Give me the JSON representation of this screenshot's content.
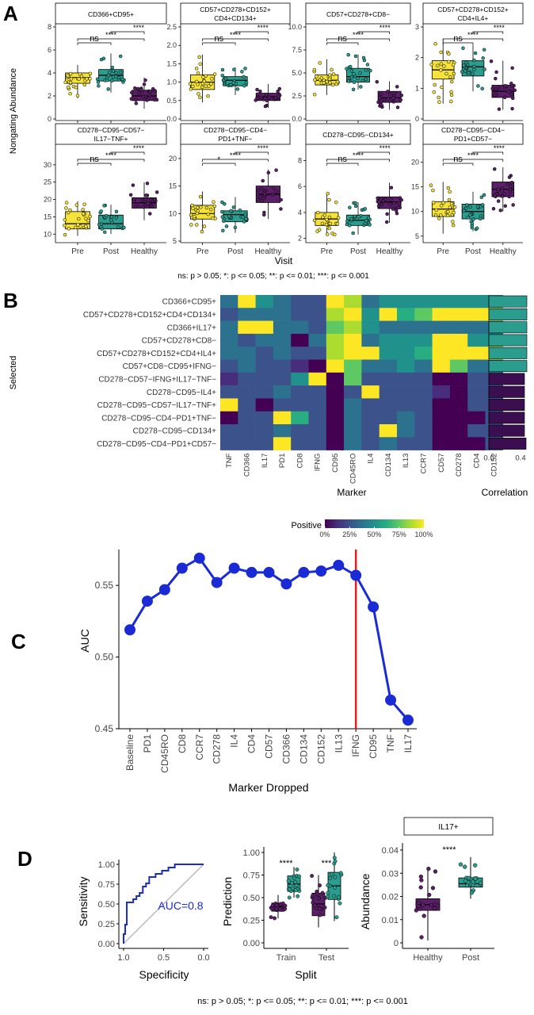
{
  "panels": {
    "A": {
      "letter": "A",
      "ylabel": "Nongating Abundance",
      "xlabel": "Visit",
      "footnote": "ns: p > 0.05; *: p <= 0.05; **: p <= 0.01; ***: p <= 0.001",
      "groups": [
        "Pre",
        "Post",
        "Healthy"
      ],
      "group_colors": [
        "#f5e33a",
        "#2a9d8f",
        "#5a1f66"
      ],
      "facets": [
        {
          "title_lines": [
            "CD366+CD95+"
          ],
          "ylim": [
            0,
            8
          ],
          "yticks": [
            "0",
            "2",
            "4",
            "6",
            "8"
          ],
          "boxes": [
            {
              "q1": 3.1,
              "median": 3.6,
              "q3": 4.0,
              "min": 1.8,
              "max": 4.7
            },
            {
              "q1": 3.3,
              "median": 3.8,
              "q3": 4.3,
              "min": 2.3,
              "max": 5.7
            },
            {
              "q1": 1.6,
              "median": 2.0,
              "q3": 2.5,
              "min": 0.9,
              "max": 3.6
            }
          ],
          "brackets": [
            {
              "from": "Pre",
              "to": "Post",
              "label": "ns"
            },
            {
              "from": "Pre",
              "to": "Healthy",
              "label": "****"
            },
            {
              "from": "Post",
              "to": "Healthy",
              "label": "****"
            }
          ]
        },
        {
          "title_lines": [
            "CD57+CD278+CD152+",
            "CD4+CD134+"
          ],
          "ylim": [
            0,
            2.5
          ],
          "yticks": [
            "0.0",
            "0.5",
            "1.0",
            "1.5",
            "2.0",
            "2.5"
          ],
          "boxes": [
            {
              "q1": 0.8,
              "median": 1.0,
              "q3": 1.2,
              "min": 0.45,
              "max": 1.75
            },
            {
              "q1": 0.9,
              "median": 1.05,
              "q3": 1.15,
              "min": 0.65,
              "max": 1.4
            },
            {
              "q1": 0.5,
              "median": 0.6,
              "q3": 0.7,
              "min": 0.3,
              "max": 0.95
            }
          ],
          "brackets": [
            {
              "from": "Pre",
              "to": "Post",
              "label": "ns"
            },
            {
              "from": "Pre",
              "to": "Healthy",
              "label": "****"
            },
            {
              "from": "Post",
              "to": "Healthy",
              "label": "****"
            }
          ]
        },
        {
          "title_lines": [
            "CD57+CD278+CD8−"
          ],
          "ylim": [
            0,
            10
          ],
          "yticks": [
            "0.0",
            "2.5",
            "5.0",
            "7.5",
            "10.0"
          ],
          "boxes": [
            {
              "q1": 3.7,
              "median": 4.2,
              "q3": 4.8,
              "min": 2.6,
              "max": 6.5
            },
            {
              "q1": 4.0,
              "median": 4.6,
              "q3": 5.5,
              "min": 3.2,
              "max": 7.0
            },
            {
              "q1": 1.8,
              "median": 2.3,
              "q3": 3.0,
              "min": 1.0,
              "max": 4.1
            }
          ],
          "brackets": [
            {
              "from": "Pre",
              "to": "Post",
              "label": "ns"
            },
            {
              "from": "Pre",
              "to": "Healthy",
              "label": "****"
            },
            {
              "from": "Post",
              "to": "Healthy",
              "label": "****"
            }
          ]
        },
        {
          "title_lines": [
            "CD57+CD278+CD152+",
            "CD4+IL4+"
          ],
          "ylim": [
            0,
            3
          ],
          "yticks": [
            "0",
            "1",
            "2",
            "3"
          ],
          "boxes": [
            {
              "q1": 1.3,
              "median": 1.6,
              "q3": 1.9,
              "min": 0.5,
              "max": 2.6
            },
            {
              "q1": 1.4,
              "median": 1.7,
              "q3": 1.9,
              "min": 0.9,
              "max": 2.4
            },
            {
              "q1": 0.7,
              "median": 0.9,
              "q3": 1.1,
              "min": 0.3,
              "max": 1.9
            }
          ],
          "brackets": [
            {
              "from": "Pre",
              "to": "Post",
              "label": "ns"
            },
            {
              "from": "Pre",
              "to": "Healthy",
              "label": "****"
            },
            {
              "from": "Post",
              "to": "Healthy",
              "label": "****"
            }
          ]
        },
        {
          "title_lines": [
            "CD278−CD95−CD57−",
            "IL17−TNF+"
          ],
          "ylim": [
            8,
            35
          ],
          "yticks": [
            "10",
            "15",
            "20",
            "25",
            "30"
          ],
          "boxes": [
            {
              "q1": 11.5,
              "median": 13.0,
              "q3": 16.5,
              "min": 9.5,
              "max": 19.5
            },
            {
              "q1": 11.5,
              "median": 13.0,
              "q3": 15.5,
              "min": 10.0,
              "max": 18.5
            },
            {
              "q1": 17.5,
              "median": 19.0,
              "q3": 20.5,
              "min": 14.0,
              "max": 25.0
            }
          ],
          "brackets": [
            {
              "from": "Pre",
              "to": "Post",
              "label": "ns"
            },
            {
              "from": "Pre",
              "to": "Healthy",
              "label": "****"
            },
            {
              "from": "Post",
              "to": "Healthy",
              "label": "****"
            }
          ]
        },
        {
          "title_lines": [
            "CD278−CD95−CD4−",
            "PD1+TNF−"
          ],
          "ylim": [
            5,
            22
          ],
          "yticks": [
            "5",
            "10",
            "15",
            "20"
          ],
          "boxes": [
            {
              "q1": 9.0,
              "median": 10.0,
              "q3": 11.5,
              "min": 6.5,
              "max": 14.0
            },
            {
              "q1": 8.5,
              "median": 9.8,
              "q3": 10.5,
              "min": 6.5,
              "max": 13.0
            },
            {
              "q1": 12.0,
              "median": 13.5,
              "q3": 15.0,
              "min": 9.0,
              "max": 18.0
            }
          ],
          "brackets": [
            {
              "from": "Pre",
              "to": "Post",
              "label": "*"
            },
            {
              "from": "Pre",
              "to": "Healthy",
              "label": "****"
            },
            {
              "from": "Post",
              "to": "Healthy",
              "label": "****"
            }
          ]
        },
        {
          "title_lines": [
            "CD278−CD95−CD134+"
          ],
          "ylim": [
            1.8,
            9
          ],
          "yticks": [
            "2",
            "4",
            "6",
            "8"
          ],
          "boxes": [
            {
              "q1": 3.0,
              "median": 3.5,
              "q3": 4.0,
              "min": 2.2,
              "max": 5.5
            },
            {
              "q1": 3.0,
              "median": 3.4,
              "q3": 3.8,
              "min": 2.3,
              "max": 4.8
            },
            {
              "q1": 4.3,
              "median": 4.8,
              "q3": 5.2,
              "min": 3.2,
              "max": 6.3
            }
          ],
          "brackets": [
            {
              "from": "Pre",
              "to": "Post",
              "label": "ns"
            },
            {
              "from": "Pre",
              "to": "Healthy",
              "label": "****"
            },
            {
              "from": "Post",
              "to": "Healthy",
              "label": "****"
            }
          ]
        },
        {
          "title_lines": [
            "CD278−CD95−CD4−",
            "PD1+CD57−"
          ],
          "ylim": [
            4,
            23
          ],
          "yticks": [
            "5",
            "10",
            "15",
            "20"
          ],
          "boxes": [
            {
              "q1": 9.0,
              "median": 10.5,
              "q3": 12.0,
              "min": 5.5,
              "max": 16.0
            },
            {
              "q1": 8.5,
              "median": 10.0,
              "q3": 11.5,
              "min": 6.0,
              "max": 14.0
            },
            {
              "q1": 13.0,
              "median": 14.5,
              "q3": 16.0,
              "min": 10.0,
              "max": 19.0
            }
          ],
          "brackets": [
            {
              "from": "Pre",
              "to": "Post",
              "label": "ns"
            },
            {
              "from": "Pre",
              "to": "Healthy",
              "label": "****"
            },
            {
              "from": "Post",
              "to": "Healthy",
              "label": "****"
            }
          ]
        }
      ]
    },
    "B": {
      "letter": "B",
      "ylabel": "Selected",
      "xlabel": "Marker",
      "corr_label": "Correlation",
      "corr_ticks": [
        "0.0",
        "0.4"
      ],
      "legend_title": "Positive",
      "legend_ticks": [
        "0%",
        "25%",
        "50%",
        "75%",
        "100%"
      ],
      "rows": [
        "CD366+CD95+",
        "CD57+CD278+CD152+CD4+CD134+",
        "CD366+IL17+",
        "CD57+CD278+CD8−",
        "CD57+CD278+CD152+CD4+IL4+",
        "CD57+CD8−CD95+IFNG−",
        "CD278−CD57−IFNG+IL17−TNF−",
        "CD278−CD95−IL4+",
        "CD278−CD95−CD57−IL17−TNF+",
        "CD278−CD95−CD4−PD1+TNF−",
        "CD278−CD95−CD134+",
        "CD278−CD95−CD4−PD1+CD57−"
      ],
      "cols": [
        "TNF",
        "CD366",
        "IL17",
        "PD1",
        "CD8",
        "IFNG",
        "CD95",
        "CD45RO",
        "IL4",
        "CD134",
        "IL13",
        "CCR7",
        "CD57",
        "CD278",
        "CD4",
        "CD152"
      ],
      "matrix": [
        [
          0.35,
          1.0,
          0.45,
          0.4,
          0.3,
          0.3,
          1.0,
          0.9,
          0.4,
          0.45,
          0.45,
          0.5,
          0.55,
          0.55,
          0.5,
          0.55
        ],
        [
          0.3,
          0.4,
          0.35,
          0.35,
          0.3,
          0.3,
          0.85,
          1.0,
          0.45,
          1.0,
          0.6,
          0.7,
          1.0,
          1.0,
          1.0,
          1.0
        ],
        [
          0.35,
          1.0,
          1.0,
          0.4,
          0.35,
          0.3,
          0.8,
          0.9,
          0.45,
          0.35,
          0.35,
          0.4,
          0.4,
          0.4,
          0.35,
          0.4
        ],
        [
          0.4,
          0.3,
          0.35,
          0.4,
          0.05,
          0.35,
          0.85,
          1.0,
          0.4,
          0.5,
          0.5,
          0.45,
          1.0,
          1.0,
          0.45,
          0.45
        ],
        [
          0.35,
          0.35,
          0.3,
          0.35,
          0.3,
          0.3,
          0.85,
          1.0,
          1.0,
          0.55,
          0.55,
          0.6,
          1.0,
          1.0,
          1.0,
          1.0
        ],
        [
          0.3,
          0.35,
          0.3,
          0.3,
          0.1,
          0.05,
          1.0,
          0.7,
          0.4,
          0.4,
          0.45,
          0.35,
          1.0,
          0.7,
          0.35,
          0.4
        ],
        [
          0.15,
          0.3,
          0.25,
          0.3,
          0.55,
          1.0,
          0.05,
          0.7,
          0.3,
          0.25,
          0.3,
          0.2,
          0.05,
          0.05,
          0.3,
          0.25
        ],
        [
          0.3,
          0.3,
          0.3,
          0.35,
          0.3,
          0.3,
          0.05,
          0.3,
          1.0,
          0.3,
          0.3,
          0.3,
          0.1,
          0.05,
          0.3,
          0.3
        ],
        [
          1.0,
          0.25,
          0.05,
          0.3,
          0.3,
          0.2,
          0.05,
          0.35,
          0.25,
          0.3,
          0.3,
          0.3,
          0.05,
          0.05,
          0.3,
          0.25
        ],
        [
          0.05,
          0.3,
          0.2,
          1.0,
          0.6,
          0.2,
          0.05,
          0.4,
          0.25,
          0.3,
          0.35,
          0.25,
          0.05,
          0.05,
          0.05,
          0.3
        ],
        [
          0.3,
          0.3,
          0.25,
          0.35,
          0.3,
          0.25,
          0.05,
          0.35,
          0.3,
          1.0,
          0.35,
          0.3,
          0.05,
          0.05,
          0.3,
          0.3
        ],
        [
          0.3,
          0.3,
          0.3,
          1.0,
          0.3,
          0.25,
          0.05,
          0.4,
          0.3,
          0.35,
          0.3,
          0.3,
          0.05,
          0.05,
          0.05,
          0.3
        ]
      ],
      "correlation": [
        0.48,
        0.48,
        0.48,
        0.48,
        0.48,
        0.48,
        0.45,
        0.45,
        0.45,
        0.45,
        0.45,
        0.47
      ],
      "corr_colors": [
        "#2a9d8f",
        "#2a9d8f",
        "#2a9d8f",
        "#2a9d8f",
        "#2a9d8f",
        "#2a9d8f",
        "#3b0f4f",
        "#3b0f4f",
        "#3b0f4f",
        "#3b0f4f",
        "#3b0f4f",
        "#3b0f4f"
      ]
    },
    "C": {
      "letter": "C",
      "ylabel": "AUC",
      "xlabel": "Marker Dropped",
      "yticks": [
        "0.45",
        "0.50",
        "0.55"
      ],
      "line_color": "#1a2bd6",
      "vline_color": "#e02020",
      "vline_at": "IFNG"
    },
    "D": {
      "letter": "D",
      "footnote": "ns: p > 0.05; *: p <= 0.05; **: p <= 0.01; ***: p <= 0.001",
      "roc": {
        "xlabel": "Specificity",
        "ylabel": "Sensitivity",
        "auc_label": "AUC=0.8",
        "xticks": [
          "1.0",
          "0.5",
          "0.0"
        ],
        "yticks": [
          "0.00",
          "0.25",
          "0.50",
          "0.75",
          "1.00"
        ]
      },
      "prediction": {
        "xlabel": "Split",
        "ylabel": "Prediction",
        "categories": [
          "Train",
          "Test"
        ],
        "yticks": [
          "0.00",
          "0.25",
          "0.50",
          "0.75",
          "1.00"
        ],
        "sig": [
          "****",
          "***"
        ],
        "boxes": [
          {
            "group": "Train",
            "cls": 0,
            "q1": 0.35,
            "median": 0.4,
            "q3": 0.44,
            "min": 0.27,
            "max": 0.53
          },
          {
            "group": "Train",
            "cls": 1,
            "q1": 0.57,
            "median": 0.65,
            "q3": 0.74,
            "min": 0.5,
            "max": 0.84
          },
          {
            "group": "Test",
            "cls": 0,
            "q1": 0.3,
            "median": 0.43,
            "q3": 0.55,
            "min": 0.17,
            "max": 0.75
          },
          {
            "group": "Test",
            "cls": 1,
            "q1": 0.48,
            "median": 0.63,
            "q3": 0.78,
            "min": 0.24,
            "max": 1.0
          }
        ]
      },
      "abundance": {
        "facet_title": "IL17+",
        "ylabel": "Abundance",
        "categories": [
          "Healthy",
          "Post"
        ],
        "yticks": [
          "0",
          "0.01",
          "0.02",
          "0.03",
          "0.04"
        ],
        "sig": "****",
        "boxes": [
          {
            "cls": 0,
            "q1": 0.014,
            "median": 0.0165,
            "q3": 0.019,
            "min": 0.001,
            "max": 0.032
          },
          {
            "cls": 1,
            "q1": 0.024,
            "median": 0.0255,
            "q3": 0.028,
            "min": 0.019,
            "max": 0.037
          }
        ]
      }
    }
  },
  "chart_data": [
    {
      "type": "line",
      "title": "",
      "xlabel": "Marker Dropped",
      "ylabel": "AUC",
      "categories": [
        "Baseline",
        "PD1",
        "CD45RO",
        "CD8",
        "CCR7",
        "CD278",
        "IL4",
        "CD4",
        "CD57",
        "CD366",
        "CD134",
        "CD152",
        "IL13",
        "IFNG",
        "CD95",
        "TNF",
        "IL17"
      ],
      "values": [
        0.519,
        0.539,
        0.547,
        0.562,
        0.569,
        0.552,
        0.562,
        0.559,
        0.559,
        0.551,
        0.559,
        0.56,
        0.564,
        0.557,
        0.535,
        0.47,
        0.456
      ],
      "ylim": [
        0.45,
        0.575
      ],
      "vline": "IFNG",
      "grid": false
    },
    {
      "type": "line",
      "title": "",
      "xlabel": "Specificity",
      "ylabel": "Sensitivity",
      "annotation": "AUC=0.8",
      "x": [
        1.0,
        1.0,
        0.98,
        0.98,
        0.96,
        0.96,
        0.92,
        0.92,
        0.88,
        0.88,
        0.84,
        0.84,
        0.8,
        0.8,
        0.76,
        0.76,
        0.72,
        0.72,
        0.68,
        0.68,
        0.6,
        0.6,
        0.52,
        0.52,
        0.44,
        0.44,
        0.36,
        0.36,
        0.2,
        0.2,
        0.0
      ],
      "y": [
        0.0,
        0.12,
        0.12,
        0.24,
        0.24,
        0.52,
        0.52,
        0.52,
        0.52,
        0.56,
        0.56,
        0.6,
        0.6,
        0.64,
        0.64,
        0.72,
        0.72,
        0.76,
        0.76,
        0.84,
        0.84,
        0.88,
        0.88,
        0.92,
        0.92,
        0.96,
        0.96,
        1.0,
        1.0,
        1.0,
        1.0
      ],
      "xlim": [
        1.0,
        0.0
      ],
      "ylim": [
        0.0,
        1.0
      ],
      "reference_diagonal": true
    }
  ]
}
